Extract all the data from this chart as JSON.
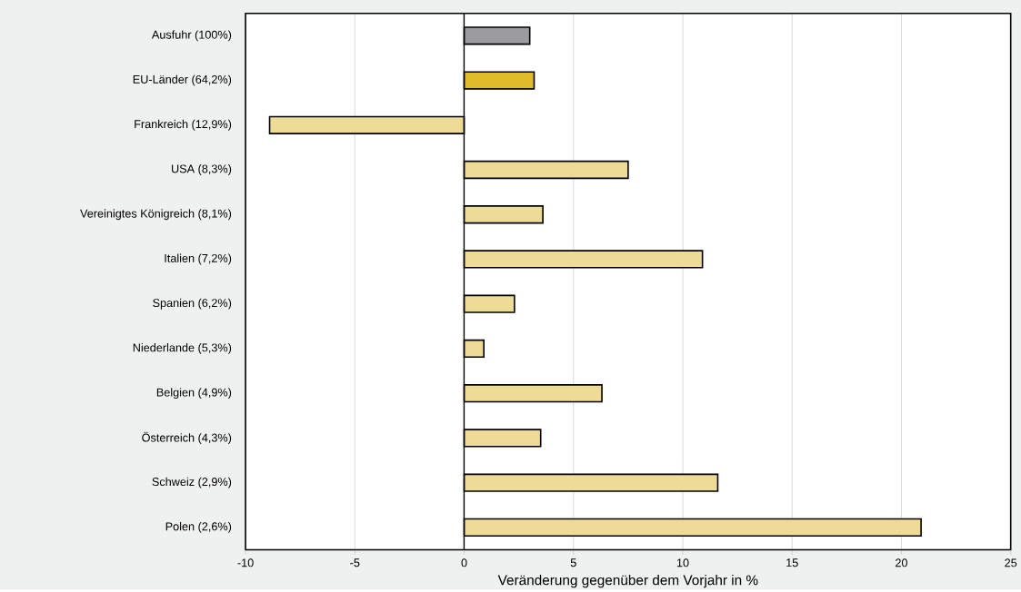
{
  "chart_data": {
    "type": "bar",
    "orientation": "horizontal",
    "xlabel": "Veränderung gegenüber dem Vorjahr in %",
    "categories": [
      "Ausfuhr (100%)",
      "EU-Länder (64,2%)",
      "Frankreich (12,9%)",
      "USA (8,3%)",
      "Vereinigtes Königreich (8,1%)",
      "Italien (7,2%)",
      "Spanien (6,2%)",
      "Niederlande (5,3%)",
      "Belgien (4,9%)",
      "Österreich (4,3%)",
      "Schweiz (2,9%)",
      "Polen (2,6%)"
    ],
    "values": [
      3.0,
      3.2,
      -8.9,
      7.5,
      3.6,
      10.9,
      2.3,
      0.9,
      6.3,
      3.5,
      11.6,
      20.9
    ],
    "colors": [
      "#9c9ca0",
      "#e0bc28",
      "#eedb95",
      "#eedb95",
      "#eedb95",
      "#eedb95",
      "#eedb95",
      "#eedb95",
      "#eedb95",
      "#eedb95",
      "#eedb95",
      "#eedb95"
    ],
    "xlim": [
      -10,
      25
    ],
    "xticks": [
      -10,
      -5,
      0,
      5,
      10,
      15,
      20,
      25
    ],
    "grid": "x"
  }
}
